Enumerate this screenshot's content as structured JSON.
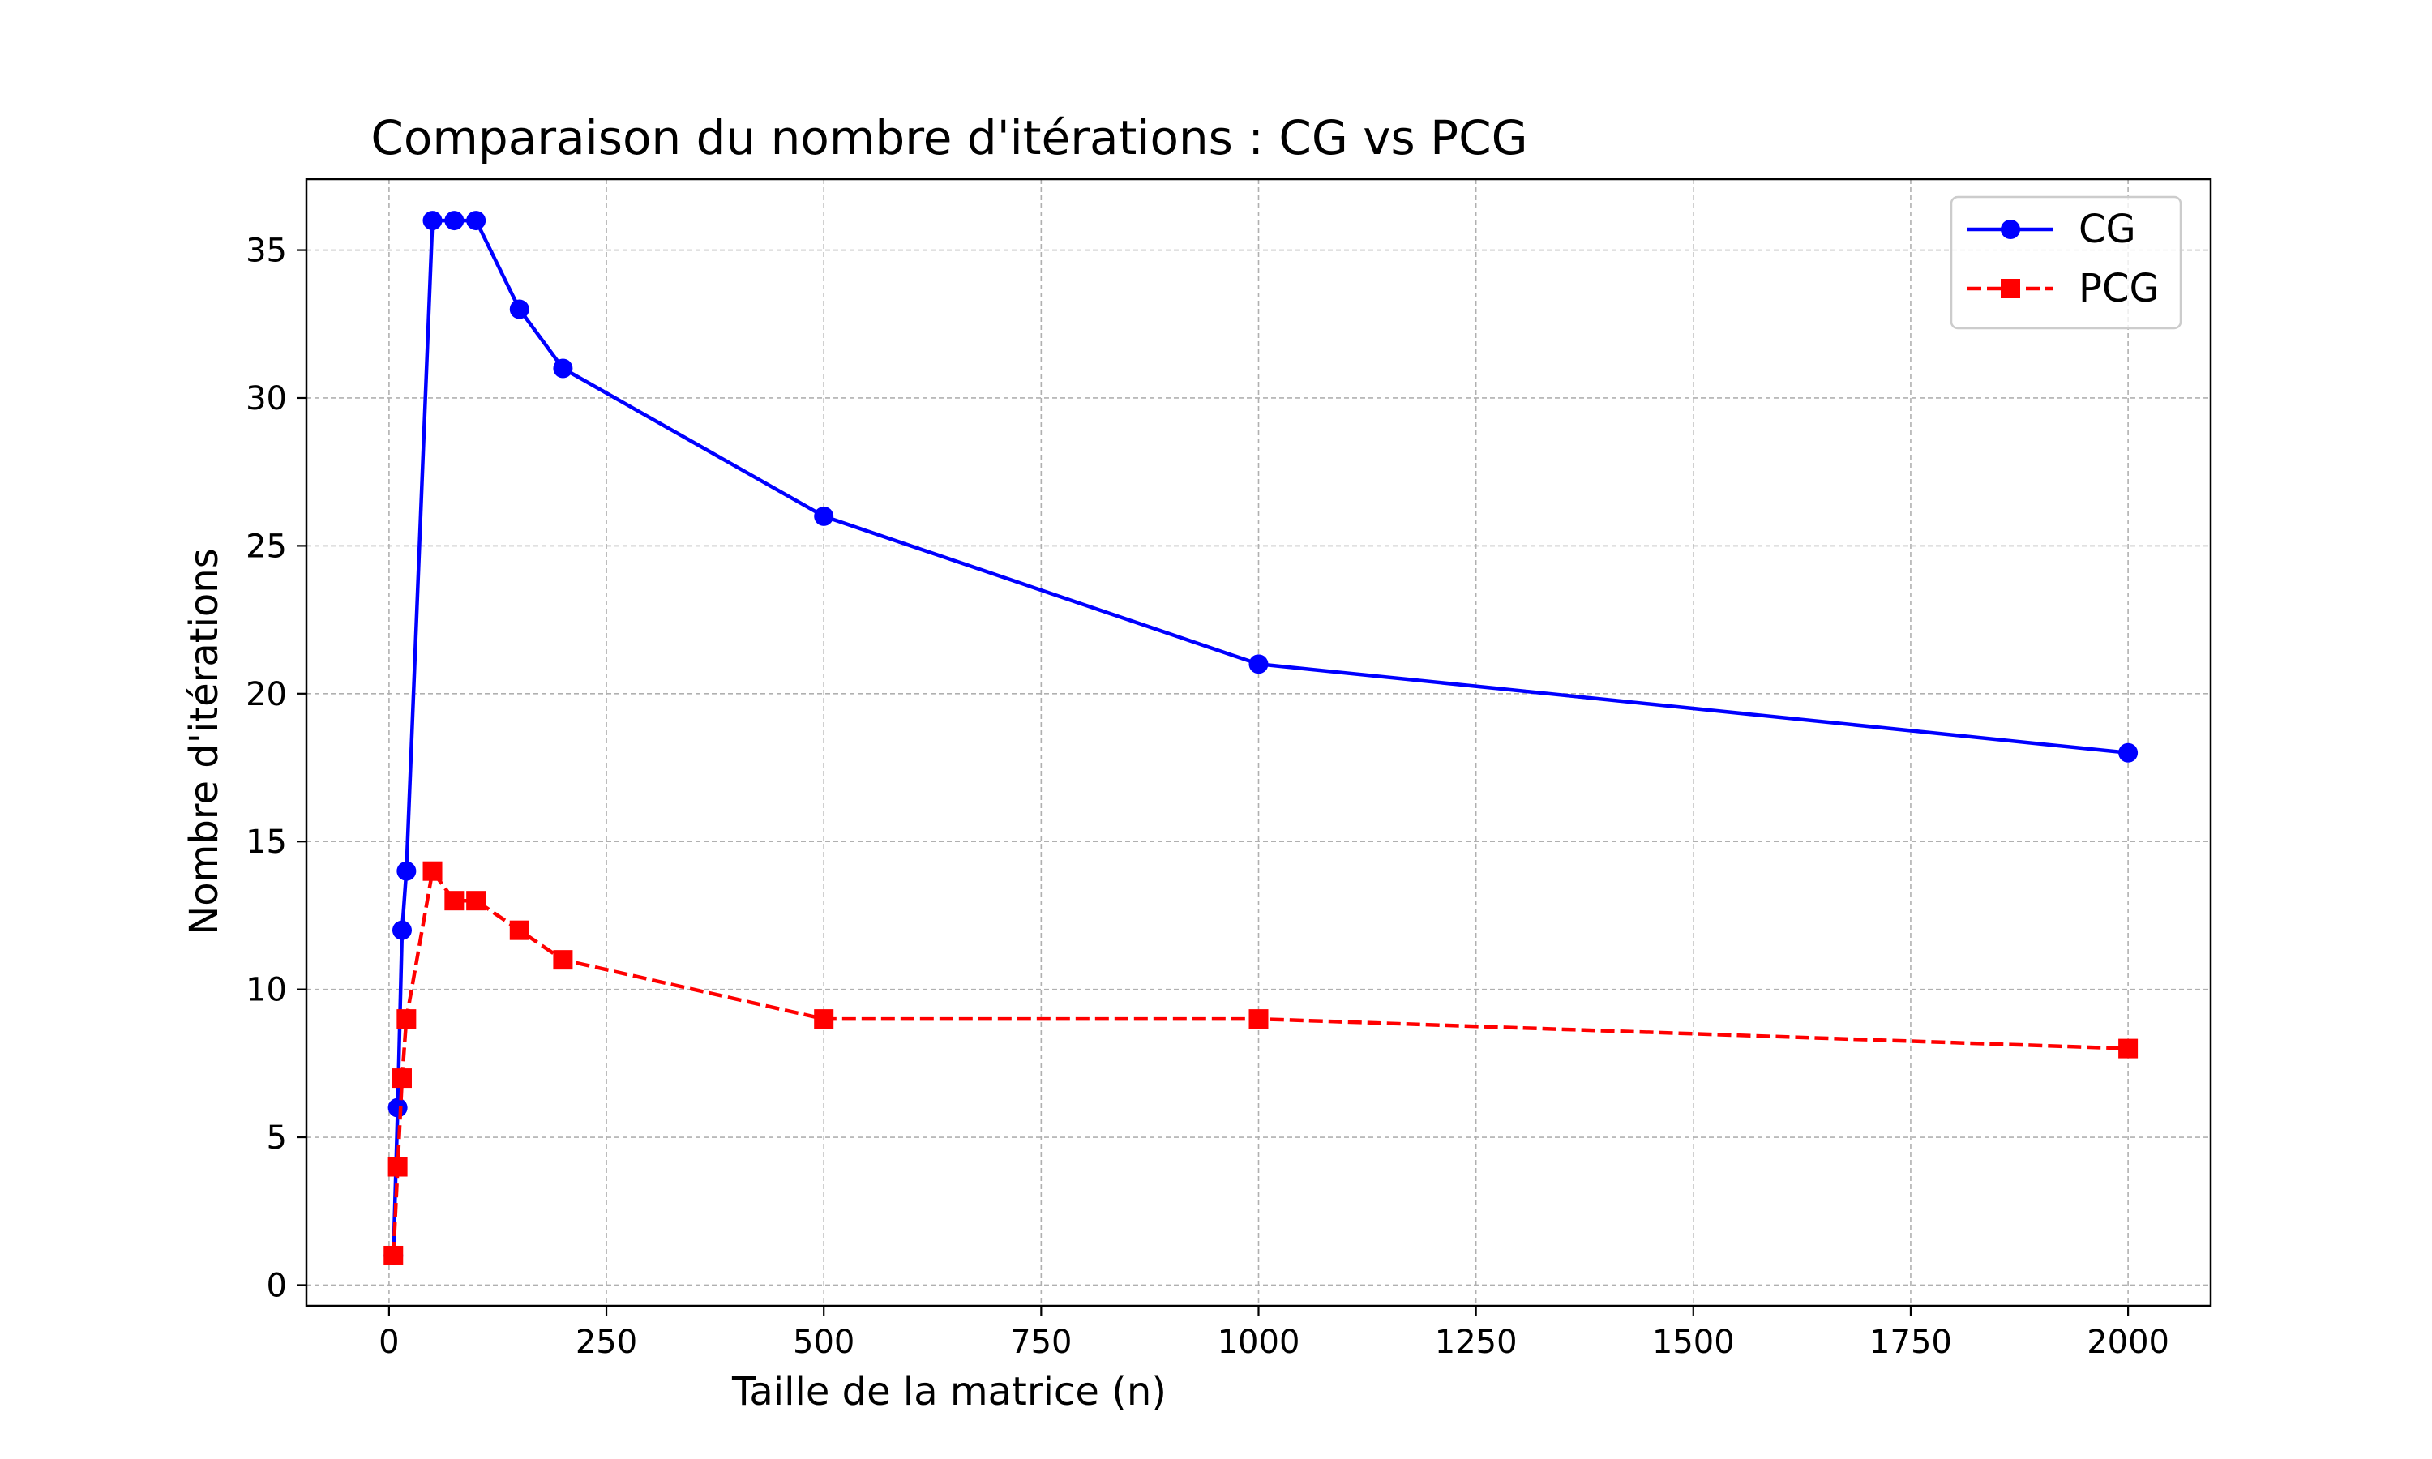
{
  "chart_data": {
    "type": "line",
    "title": "Comparaison du nombre d'itérations : CG vs PCG",
    "xlabel": "Taille de la matrice (n)",
    "ylabel": "Nombre d'itérations",
    "xlim": [
      -95,
      2095
    ],
    "ylim": [
      -0.7,
      37.4
    ],
    "x_ticks": [
      0,
      250,
      500,
      750,
      1000,
      1250,
      1500,
      1750,
      2000
    ],
    "y_ticks": [
      0,
      5,
      10,
      15,
      20,
      25,
      30,
      35
    ],
    "grid": true,
    "legend_position": "top-right",
    "x": [
      5,
      10,
      15,
      20,
      50,
      75,
      100,
      150,
      200,
      500,
      1000,
      2000
    ],
    "series": [
      {
        "name": "CG",
        "values": [
          1,
          6,
          12,
          14,
          36,
          36,
          36,
          33,
          31,
          26,
          21,
          18
        ],
        "color": "#0000ff",
        "line_style": "solid",
        "marker": "circle"
      },
      {
        "name": "PCG",
        "values": [
          1,
          4,
          7,
          9,
          14,
          13,
          13,
          12,
          11,
          9,
          9,
          8
        ],
        "color": "#ff0000",
        "line_style": "dashed",
        "marker": "square"
      }
    ]
  }
}
